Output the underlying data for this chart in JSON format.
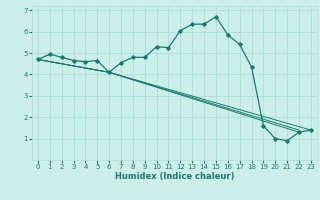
{
  "title": "",
  "xlabel": "Humidex (Indice chaleur)",
  "bg_color": "#cceee8",
  "grid_color": "#aadddd",
  "line_color": "#1a7a6e",
  "xlim": [
    -0.5,
    23.5
  ],
  "ylim": [
    0,
    7.2
  ],
  "xticks": [
    0,
    1,
    2,
    3,
    4,
    5,
    6,
    7,
    8,
    9,
    10,
    11,
    12,
    13,
    14,
    15,
    16,
    17,
    18,
    19,
    20,
    21,
    22,
    23
  ],
  "yticks": [
    1,
    2,
    3,
    4,
    5,
    6,
    7
  ],
  "series1_x": [
    0,
    1,
    2,
    3,
    4,
    5,
    6,
    7,
    8,
    9,
    10,
    11,
    12,
    13,
    14,
    15,
    16,
    17,
    18,
    19,
    20,
    21,
    22,
    23
  ],
  "series1_y": [
    4.7,
    4.95,
    4.8,
    4.65,
    4.6,
    4.65,
    4.1,
    4.55,
    4.8,
    4.8,
    5.3,
    5.25,
    6.05,
    6.35,
    6.35,
    6.7,
    5.85,
    5.4,
    4.35,
    1.6,
    1.0,
    0.9,
    1.3,
    1.4
  ],
  "series2_x": [
    0,
    6,
    22
  ],
  "series2_y": [
    4.7,
    4.1,
    1.3
  ],
  "series3_x": [
    0,
    6,
    22
  ],
  "series3_y": [
    4.7,
    4.1,
    1.4
  ],
  "series4_x": [
    0,
    6,
    23
  ],
  "series4_y": [
    4.7,
    4.1,
    1.4
  ],
  "tick_fontsize": 5,
  "xlabel_fontsize": 6
}
